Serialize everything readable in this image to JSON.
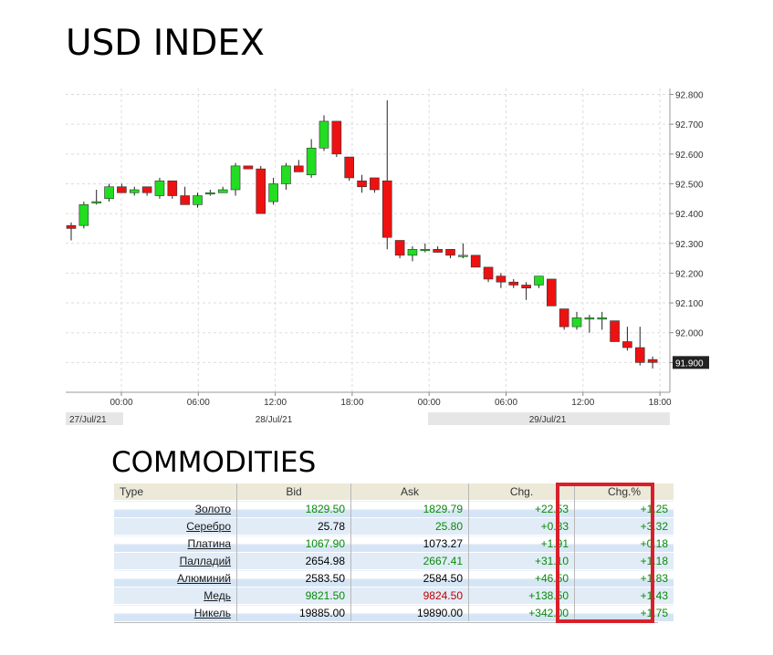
{
  "header": {
    "title": "USD INDEX"
  },
  "commodities": {
    "title": "COMMODITIES",
    "columns": [
      "Type",
      "Bid",
      "Ask",
      "Chg.",
      "Chg.%"
    ],
    "rows": [
      {
        "name": "Золото",
        "bid": "1829.50",
        "ask": "1829.79",
        "chg": "+22.53",
        "chgp": "+1.25",
        "bid_color": "green",
        "ask_color": "green"
      },
      {
        "name": "Серебро",
        "bid": "25.78",
        "ask": "25.80",
        "chg": "+0.83",
        "chgp": "+3.32",
        "bid_color": "black",
        "ask_color": "green"
      },
      {
        "name": "Платина",
        "bid": "1067.90",
        "ask": "1073.27",
        "chg": "+1.91",
        "chgp": "+0.18",
        "bid_color": "green",
        "ask_color": "black"
      },
      {
        "name": "Палладий",
        "bid": "2654.98",
        "ask": "2667.41",
        "chg": "+31.10",
        "chgp": "+1.18",
        "bid_color": "black",
        "ask_color": "green"
      },
      {
        "name": "Алюминий",
        "bid": "2583.50",
        "ask": "2584.50",
        "chg": "+46.50",
        "chgp": "+1.83",
        "bid_color": "black",
        "ask_color": "black"
      },
      {
        "name": "Медь",
        "bid": "9821.50",
        "ask": "9824.50",
        "chg": "+138.50",
        "chgp": "+1.43",
        "bid_color": "green",
        "ask_color": "red"
      },
      {
        "name": "Никель",
        "bid": "19885.00",
        "ask": "19890.00",
        "chg": "+342.00",
        "chgp": "+1.75",
        "bid_color": "black",
        "ask_color": "black"
      }
    ]
  },
  "colors": {
    "up": "#22dd22",
    "down": "#ee1111",
    "highlight": "#d9202a"
  },
  "chart_data": {
    "type": "candlestick",
    "title": "USD INDEX",
    "ylim": [
      91.8,
      92.82
    ],
    "y_ticks": [
      "92.800",
      "92.700",
      "92.600",
      "92.500",
      "92.400",
      "92.300",
      "92.200",
      "92.100",
      "92.000",
      "91.900"
    ],
    "last_price": "91.900",
    "x_ticks": [
      "00:00",
      "06:00",
      "12:00",
      "18:00",
      "00:00",
      "06:00",
      "12:00",
      "18:00"
    ],
    "date_labels": [
      "27/Jul/21",
      "28/Jul/21",
      "29/Jul/21"
    ],
    "grid": true,
    "candles": [
      {
        "o": 92.36,
        "h": 92.37,
        "l": 92.31,
        "c": 92.35
      },
      {
        "o": 92.36,
        "h": 92.44,
        "l": 92.35,
        "c": 92.43
      },
      {
        "o": 92.44,
        "h": 92.48,
        "l": 92.43,
        "c": 92.44
      },
      {
        "o": 92.45,
        "h": 92.5,
        "l": 92.44,
        "c": 92.49
      },
      {
        "o": 92.49,
        "h": 92.5,
        "l": 92.47,
        "c": 92.47
      },
      {
        "o": 92.47,
        "h": 92.49,
        "l": 92.46,
        "c": 92.48
      },
      {
        "o": 92.49,
        "h": 92.49,
        "l": 92.46,
        "c": 92.47
      },
      {
        "o": 92.46,
        "h": 92.52,
        "l": 92.45,
        "c": 92.51
      },
      {
        "o": 92.51,
        "h": 92.51,
        "l": 92.45,
        "c": 92.46
      },
      {
        "o": 92.46,
        "h": 92.49,
        "l": 92.43,
        "c": 92.43
      },
      {
        "o": 92.43,
        "h": 92.47,
        "l": 92.42,
        "c": 92.46
      },
      {
        "o": 92.47,
        "h": 92.48,
        "l": 92.46,
        "c": 92.47
      },
      {
        "o": 92.47,
        "h": 92.49,
        "l": 92.47,
        "c": 92.48
      },
      {
        "o": 92.48,
        "h": 92.57,
        "l": 92.46,
        "c": 92.56
      },
      {
        "o": 92.56,
        "h": 92.56,
        "l": 92.55,
        "c": 92.55
      },
      {
        "o": 92.55,
        "h": 92.56,
        "l": 92.4,
        "c": 92.4
      },
      {
        "o": 92.44,
        "h": 92.52,
        "l": 92.43,
        "c": 92.5
      },
      {
        "o": 92.5,
        "h": 92.57,
        "l": 92.48,
        "c": 92.56
      },
      {
        "o": 92.56,
        "h": 92.58,
        "l": 92.54,
        "c": 92.54
      },
      {
        "o": 92.53,
        "h": 92.65,
        "l": 92.52,
        "c": 92.62
      },
      {
        "o": 92.62,
        "h": 92.73,
        "l": 92.61,
        "c": 92.71
      },
      {
        "o": 92.71,
        "h": 92.71,
        "l": 92.59,
        "c": 92.6
      },
      {
        "o": 92.59,
        "h": 92.59,
        "l": 92.51,
        "c": 92.52
      },
      {
        "o": 92.51,
        "h": 92.53,
        "l": 92.47,
        "c": 92.49
      },
      {
        "o": 92.52,
        "h": 92.52,
        "l": 92.47,
        "c": 92.48
      },
      {
        "o": 92.51,
        "h": 92.78,
        "l": 92.28,
        "c": 92.32
      },
      {
        "o": 92.31,
        "h": 92.31,
        "l": 92.25,
        "c": 92.26
      },
      {
        "o": 92.26,
        "h": 92.29,
        "l": 92.24,
        "c": 92.28
      },
      {
        "o": 92.28,
        "h": 92.3,
        "l": 92.27,
        "c": 92.28
      },
      {
        "o": 92.28,
        "h": 92.29,
        "l": 92.27,
        "c": 92.27
      },
      {
        "o": 92.28,
        "h": 92.28,
        "l": 92.25,
        "c": 92.26
      },
      {
        "o": 92.26,
        "h": 92.3,
        "l": 92.25,
        "c": 92.26
      },
      {
        "o": 92.26,
        "h": 92.26,
        "l": 92.22,
        "c": 92.22
      },
      {
        "o": 92.22,
        "h": 92.22,
        "l": 92.17,
        "c": 92.18
      },
      {
        "o": 92.19,
        "h": 92.2,
        "l": 92.15,
        "c": 92.17
      },
      {
        "o": 92.17,
        "h": 92.18,
        "l": 92.15,
        "c": 92.16
      },
      {
        "o": 92.16,
        "h": 92.17,
        "l": 92.11,
        "c": 92.15
      },
      {
        "o": 92.16,
        "h": 92.19,
        "l": 92.15,
        "c": 92.19
      },
      {
        "o": 92.18,
        "h": 92.18,
        "l": 92.09,
        "c": 92.09
      },
      {
        "o": 92.08,
        "h": 92.08,
        "l": 92.01,
        "c": 92.02
      },
      {
        "o": 92.02,
        "h": 92.07,
        "l": 92.01,
        "c": 92.05
      },
      {
        "o": 92.05,
        "h": 92.06,
        "l": 92.0,
        "c": 92.05
      },
      {
        "o": 92.05,
        "h": 92.07,
        "l": 92.01,
        "c": 92.05
      },
      {
        "o": 92.04,
        "h": 92.04,
        "l": 91.97,
        "c": 91.97
      },
      {
        "o": 91.97,
        "h": 92.02,
        "l": 91.94,
        "c": 91.95
      },
      {
        "o": 91.95,
        "h": 92.02,
        "l": 91.89,
        "c": 91.9
      },
      {
        "o": 91.91,
        "h": 91.92,
        "l": 91.88,
        "c": 91.9
      }
    ]
  }
}
